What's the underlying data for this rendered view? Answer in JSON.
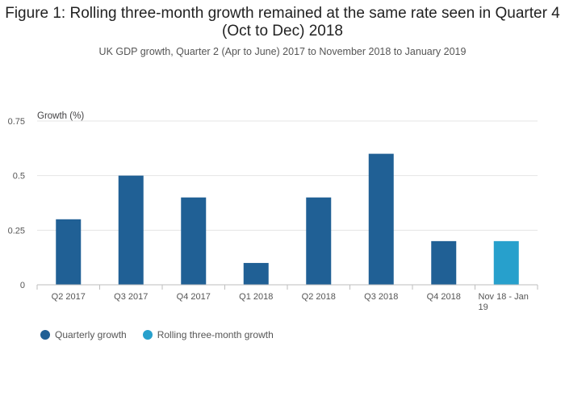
{
  "title": "Figure 1: Rolling three-month growth remained at the same rate seen in Quarter 4 (Oct to Dec) 2018",
  "subtitle": "UK GDP growth, Quarter 2 (Apr to June) 2017 to November 2018 to January 2019",
  "colors": {
    "quarterly": "#206095",
    "rolling": "#27A0CC",
    "grid": "#E5E5E5",
    "axis": "#BEBEBE"
  },
  "chart_data": {
    "type": "bar",
    "ylabel": "Growth (%)",
    "xlabel": "",
    "ylim": [
      0,
      0.75
    ],
    "yticks": [
      0,
      0.25,
      0.5,
      0.75
    ],
    "ytick_labels": [
      "0",
      "0.25",
      "0.5",
      "0.75"
    ],
    "grid": true,
    "legend_position": "bottom-left",
    "categories": [
      "Q2 2017",
      "Q3 2017",
      "Q4 2017",
      "Q1 2018",
      "Q2 2018",
      "Q3 2018",
      "Q4 2018",
      "Nov 18 - Jan 19"
    ],
    "series": [
      {
        "name": "Quarterly growth",
        "values": [
          0.3,
          0.5,
          0.4,
          0.1,
          0.4,
          0.6,
          0.2,
          null
        ]
      },
      {
        "name": "Rolling three-month growth",
        "values": [
          null,
          null,
          null,
          null,
          null,
          null,
          null,
          0.2
        ]
      }
    ]
  }
}
